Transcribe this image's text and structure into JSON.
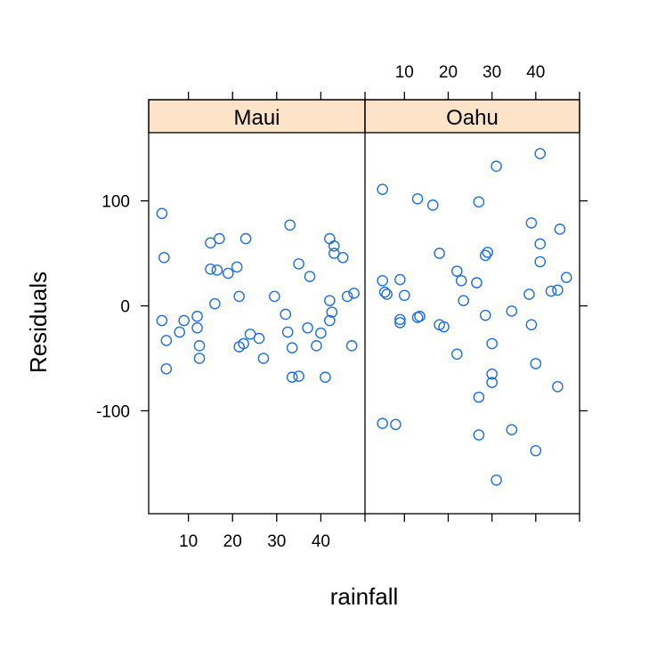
{
  "chart_data": {
    "type": "scatter",
    "xlabel": "rainfall",
    "ylabel": "Residuals",
    "xlim": [
      1,
      50
    ],
    "ylim": [
      -198,
      165
    ],
    "x_ticks": [
      10,
      20,
      30,
      40
    ],
    "y_ticks": [
      -100,
      0,
      100
    ],
    "y_tick_labels": [
      "-100",
      "0",
      "100"
    ],
    "point_color": "#1f6fe0",
    "strip_color": "#fde3c8",
    "panels": [
      {
        "strip": "Maui",
        "points": [
          {
            "x": 4,
            "y": 88
          },
          {
            "x": 4.5,
            "y": 46
          },
          {
            "x": 4,
            "y": -14
          },
          {
            "x": 5,
            "y": -33
          },
          {
            "x": 5,
            "y": -60
          },
          {
            "x": 8,
            "y": -25
          },
          {
            "x": 9,
            "y": -14
          },
          {
            "x": 12,
            "y": -10
          },
          {
            "x": 12,
            "y": -21
          },
          {
            "x": 12.5,
            "y": -38
          },
          {
            "x": 12.5,
            "y": -50
          },
          {
            "x": 15,
            "y": 60
          },
          {
            "x": 15,
            "y": 35
          },
          {
            "x": 16,
            "y": 2
          },
          {
            "x": 16.5,
            "y": 34
          },
          {
            "x": 17,
            "y": 64
          },
          {
            "x": 19,
            "y": 31
          },
          {
            "x": 21,
            "y": 37
          },
          {
            "x": 21.5,
            "y": 9
          },
          {
            "x": 21.5,
            "y": -39
          },
          {
            "x": 22.5,
            "y": -36
          },
          {
            "x": 23,
            "y": 64
          },
          {
            "x": 24,
            "y": -27
          },
          {
            "x": 26,
            "y": -31
          },
          {
            "x": 27,
            "y": -50
          },
          {
            "x": 29.5,
            "y": 9
          },
          {
            "x": 32,
            "y": -8
          },
          {
            "x": 32.5,
            "y": -25
          },
          {
            "x": 33,
            "y": 77
          },
          {
            "x": 33.5,
            "y": -40
          },
          {
            "x": 33.5,
            "y": -68
          },
          {
            "x": 35,
            "y": 40
          },
          {
            "x": 35,
            "y": -67
          },
          {
            "x": 37,
            "y": -21
          },
          {
            "x": 37.5,
            "y": 28
          },
          {
            "x": 39,
            "y": -38
          },
          {
            "x": 40,
            "y": -26
          },
          {
            "x": 41,
            "y": -68
          },
          {
            "x": 42,
            "y": 64
          },
          {
            "x": 42,
            "y": 5
          },
          {
            "x": 42,
            "y": -14
          },
          {
            "x": 42.5,
            "y": -6
          },
          {
            "x": 43,
            "y": 57
          },
          {
            "x": 43,
            "y": 50
          },
          {
            "x": 45,
            "y": 46
          },
          {
            "x": 46,
            "y": 9
          },
          {
            "x": 47,
            "y": -38
          },
          {
            "x": 47.5,
            "y": 12
          }
        ]
      },
      {
        "strip": "Oahu",
        "points": [
          {
            "x": 5,
            "y": 111
          },
          {
            "x": 5,
            "y": 24
          },
          {
            "x": 5.5,
            "y": 13
          },
          {
            "x": 6,
            "y": 11
          },
          {
            "x": 5,
            "y": -112
          },
          {
            "x": 8,
            "y": -113
          },
          {
            "x": 9,
            "y": 25
          },
          {
            "x": 9,
            "y": -13
          },
          {
            "x": 9,
            "y": -16
          },
          {
            "x": 10,
            "y": 10
          },
          {
            "x": 13,
            "y": 102
          },
          {
            "x": 13,
            "y": -11
          },
          {
            "x": 13.5,
            "y": -10
          },
          {
            "x": 16.5,
            "y": 96
          },
          {
            "x": 18,
            "y": 50
          },
          {
            "x": 18,
            "y": -18
          },
          {
            "x": 19,
            "y": -20
          },
          {
            "x": 22,
            "y": 33
          },
          {
            "x": 22,
            "y": -46
          },
          {
            "x": 23,
            "y": 24
          },
          {
            "x": 23.5,
            "y": 5
          },
          {
            "x": 26.5,
            "y": 22
          },
          {
            "x": 27,
            "y": 99
          },
          {
            "x": 27,
            "y": -87
          },
          {
            "x": 27,
            "y": -123
          },
          {
            "x": 28.5,
            "y": 48
          },
          {
            "x": 29,
            "y": 51
          },
          {
            "x": 28.5,
            "y": -9
          },
          {
            "x": 30,
            "y": -36
          },
          {
            "x": 30,
            "y": -65
          },
          {
            "x": 30,
            "y": -73
          },
          {
            "x": 31,
            "y": 133
          },
          {
            "x": 31,
            "y": -166
          },
          {
            "x": 34.5,
            "y": -5
          },
          {
            "x": 34.5,
            "y": -118
          },
          {
            "x": 39,
            "y": 79
          },
          {
            "x": 38.5,
            "y": 11
          },
          {
            "x": 39,
            "y": -18
          },
          {
            "x": 40,
            "y": -55
          },
          {
            "x": 40,
            "y": -138
          },
          {
            "x": 41,
            "y": 145
          },
          {
            "x": 41,
            "y": 59
          },
          {
            "x": 41,
            "y": 42
          },
          {
            "x": 43.5,
            "y": 14
          },
          {
            "x": 45,
            "y": 15
          },
          {
            "x": 45,
            "y": -77
          },
          {
            "x": 45.5,
            "y": 73
          },
          {
            "x": 47,
            "y": 27
          }
        ]
      }
    ]
  }
}
